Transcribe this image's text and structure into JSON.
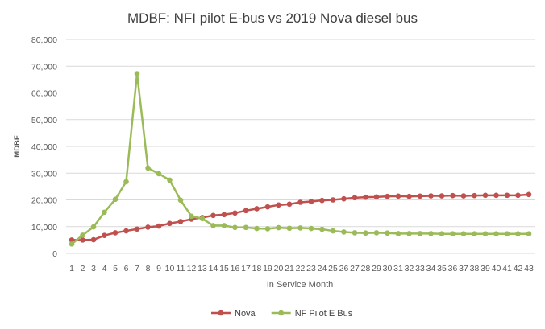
{
  "chart_data": {
    "type": "line",
    "title": "MDBF: NFI pilot E-bus vs 2019 Nova diesel bus",
    "xlabel": "In Service Month",
    "ylabel": "MDBF",
    "ylim": [
      0,
      80000
    ],
    "ytick_step": 10000,
    "y_tick_labels": [
      "0",
      "10,000",
      "20,000",
      "30,000",
      "40,000",
      "50,000",
      "60,000",
      "70,000",
      "80,000"
    ],
    "grid": true,
    "legend_position": "bottom",
    "categories": [
      "1",
      "2",
      "3",
      "4",
      "5",
      "6",
      "7",
      "8",
      "9",
      "10",
      "11",
      "12",
      "13",
      "14",
      "15",
      "16",
      "17",
      "18",
      "19",
      "20",
      "21",
      "22",
      "23",
      "24",
      "25",
      "26",
      "27",
      "28",
      "29",
      "30",
      "31",
      "32",
      "33",
      "34",
      "35",
      "36",
      "37",
      "38",
      "39",
      "40",
      "41",
      "42",
      "43"
    ],
    "series": [
      {
        "name": "Nova",
        "color": "#c0504d",
        "values": [
          5000,
          5000,
          5100,
          6700,
          7700,
          8400,
          9100,
          9800,
          10200,
          11200,
          11900,
          12800,
          13400,
          14200,
          14500,
          15100,
          16000,
          16700,
          17400,
          18100,
          18400,
          19100,
          19400,
          19800,
          20000,
          20400,
          20800,
          21000,
          21100,
          21300,
          21400,
          21300,
          21400,
          21500,
          21500,
          21600,
          21500,
          21600,
          21700,
          21700,
          21700,
          21700,
          22000
        ]
      },
      {
        "name": "NF Pilot E Bus",
        "color": "#9bbb59",
        "values": [
          3500,
          6800,
          9900,
          15400,
          20200,
          26800,
          67200,
          31900,
          29800,
          27400,
          19900,
          13900,
          13000,
          10400,
          10400,
          9700,
          9700,
          9300,
          9200,
          9600,
          9400,
          9500,
          9300,
          9000,
          8400,
          8000,
          7700,
          7600,
          7700,
          7600,
          7400,
          7400,
          7400,
          7400,
          7300,
          7300,
          7300,
          7300,
          7300,
          7300,
          7300,
          7300,
          7300
        ]
      }
    ]
  }
}
